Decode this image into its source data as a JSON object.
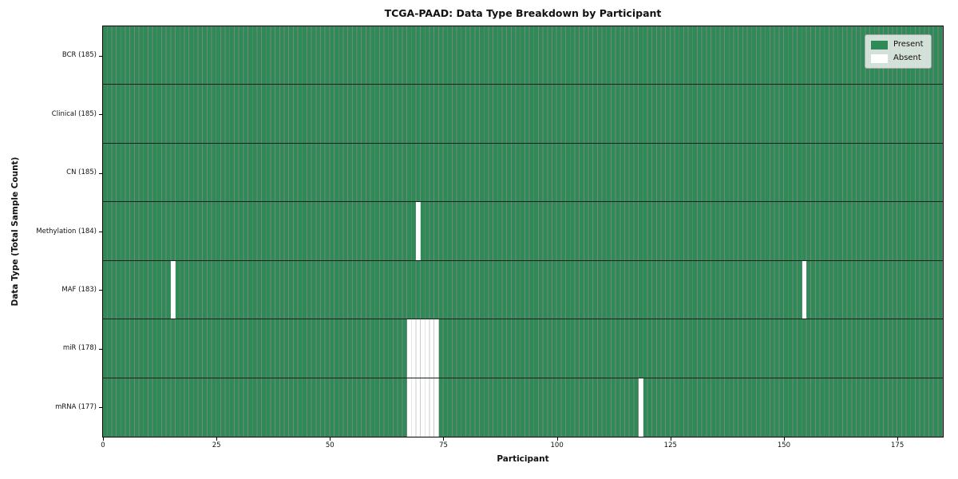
{
  "title": "TCGA-PAAD: Data Type Breakdown by Participant",
  "xlabel": "Participant",
  "ylabel": "Data Type (Total Sample Count)",
  "legend": {
    "items": [
      {
        "label": "Present",
        "color": "#2e8b57"
      },
      {
        "label": "Absent",
        "color": "#ffffff"
      }
    ]
  },
  "chart_data": {
    "type": "heatmap",
    "title": "TCGA-PAAD: Data Type Breakdown by Participant",
    "xlabel": "Participant",
    "ylabel": "Data Type (Total Sample Count)",
    "n_participants": 185,
    "x_range": [
      0,
      185
    ],
    "x_ticks": [
      0,
      25,
      50,
      75,
      100,
      125,
      150,
      175
    ],
    "legend_position": "upper right",
    "colors": {
      "present": "#2e8b57",
      "absent": "#ffffff"
    },
    "rows": [
      {
        "label": "BCR (185)",
        "data_type": "BCR",
        "present_count": 185,
        "absent_participants": []
      },
      {
        "label": "Clinical (185)",
        "data_type": "Clinical",
        "present_count": 185,
        "absent_participants": []
      },
      {
        "label": "CN (185)",
        "data_type": "CN",
        "present_count": 185,
        "absent_participants": []
      },
      {
        "label": "Methylation (184)",
        "data_type": "Methylation",
        "present_count": 184,
        "absent_participants": [
          69
        ]
      },
      {
        "label": "MAF (183)",
        "data_type": "MAF",
        "present_count": 183,
        "absent_participants": [
          15,
          154
        ]
      },
      {
        "label": "miR (178)",
        "data_type": "miR",
        "present_count": 178,
        "absent_participants": [
          67,
          68,
          69,
          70,
          71,
          72,
          73
        ]
      },
      {
        "label": "mRNA (177)",
        "data_type": "mRNA",
        "present_count": 177,
        "absent_participants": [
          67,
          68,
          69,
          70,
          71,
          72,
          73,
          118
        ]
      }
    ]
  }
}
